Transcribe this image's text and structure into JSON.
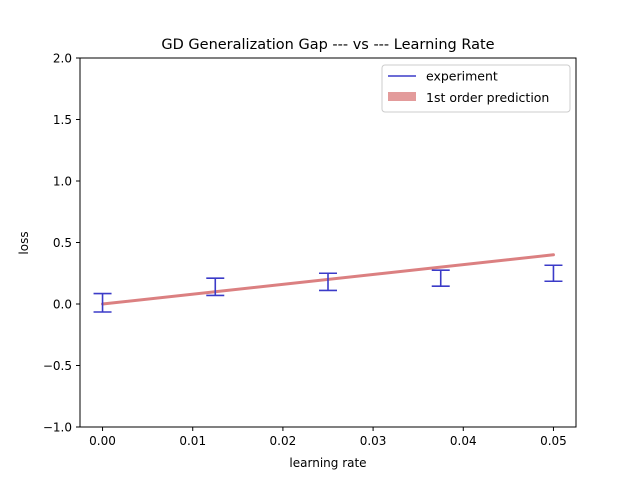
{
  "chart_data": {
    "type": "line",
    "title": "GD Generalization Gap --- vs --- Learning Rate",
    "xlabel": "learning rate",
    "ylabel": "loss",
    "xlim": [
      -0.0025,
      0.0525
    ],
    "ylim": [
      -1.0,
      2.0
    ],
    "xticks": [
      0.0,
      0.01,
      0.02,
      0.03,
      0.04,
      0.05
    ],
    "xtick_labels": [
      "0.00",
      "0.01",
      "0.02",
      "0.03",
      "0.04",
      "0.05"
    ],
    "yticks": [
      -1.0,
      -0.5,
      0.0,
      0.5,
      1.0,
      1.5,
      2.0
    ],
    "ytick_labels": [
      "−1.0",
      "−0.5",
      "0.0",
      "0.5",
      "1.0",
      "1.5",
      "2.0"
    ],
    "grid": false,
    "legend_position": "top-right",
    "series": [
      {
        "name": "experiment",
        "kind": "errorbar",
        "color": "#3b3bc8",
        "x": [
          0.0,
          0.0125,
          0.025,
          0.0375,
          0.05
        ],
        "y": [
          0.01,
          0.14,
          0.18,
          0.21,
          0.25
        ],
        "yerr": [
          0.075,
          0.07,
          0.07,
          0.065,
          0.065
        ]
      },
      {
        "name": "1st order prediction",
        "kind": "line",
        "color": "#d9797a",
        "x": [
          0.0,
          0.05
        ],
        "y": [
          0.0,
          0.4
        ]
      }
    ]
  }
}
